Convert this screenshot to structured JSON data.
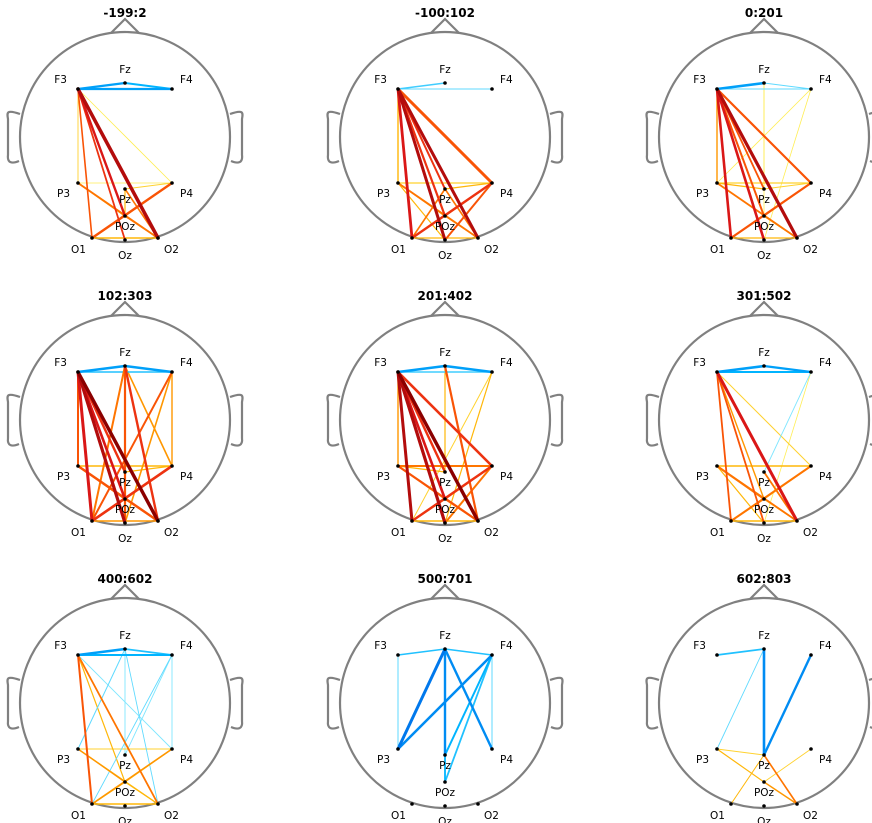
{
  "colors": {
    "head_outline": "#808080",
    "negative_scale": [
      "#7fe6ff",
      "#00b4ff",
      "#0064e6"
    ],
    "positive_scale": [
      "#ffee55",
      "#ffb000",
      "#ff6400",
      "#e41a1a",
      "#8b0000"
    ],
    "electrode": "#000000"
  },
  "electrodes": [
    "F3",
    "Fz",
    "F4",
    "P3",
    "Pz",
    "P4",
    "POz",
    "O1",
    "Oz",
    "O2"
  ],
  "panels": [
    {
      "title": "-199:2",
      "edges": [
        [
          "F3",
          "Fz",
          -0.7,
          2.2
        ],
        [
          "Fz",
          "F4",
          -0.6,
          2.0
        ],
        [
          "F3",
          "F4",
          -0.7,
          2.2
        ],
        [
          "F3",
          "O2",
          0.9,
          3.5
        ],
        [
          "F3",
          "POz",
          0.8,
          2.4
        ],
        [
          "F3",
          "Oz",
          0.7,
          1.8
        ],
        [
          "F3",
          "O1",
          0.6,
          1.6
        ],
        [
          "F3",
          "P3",
          0.2,
          0.9
        ],
        [
          "F3",
          "P4",
          0.1,
          0.8
        ],
        [
          "P3",
          "O2",
          0.5,
          1.8
        ],
        [
          "P3",
          "POz",
          0.4,
          1.6
        ],
        [
          "Pz",
          "O2",
          0.5,
          1.6
        ],
        [
          "Pz",
          "POz",
          0.3,
          1.2
        ],
        [
          "P4",
          "O1",
          0.6,
          2.4
        ],
        [
          "P4",
          "POz",
          0.4,
          1.4
        ],
        [
          "P4",
          "Pz",
          0.2,
          1.0
        ],
        [
          "P4",
          "P3",
          0.1,
          0.8
        ],
        [
          "O1",
          "O2",
          0.3,
          1.4
        ],
        [
          "POz",
          "O2",
          0.5,
          1.6
        ],
        [
          "O1",
          "POz",
          0.4,
          1.2
        ]
      ]
    },
    {
      "title": "-100:102",
      "edges": [
        [
          "F3",
          "Fz",
          -0.4,
          1.6
        ],
        [
          "F3",
          "F4",
          -0.3,
          0.9
        ],
        [
          "F3",
          "O2",
          0.9,
          3.0
        ],
        [
          "F3",
          "Oz",
          0.9,
          3.0
        ],
        [
          "F3",
          "O1",
          0.8,
          2.8
        ],
        [
          "F3",
          "POz",
          0.7,
          2.2
        ],
        [
          "F3",
          "Pz",
          0.7,
          2.0
        ],
        [
          "F3",
          "P4",
          0.6,
          3.0
        ],
        [
          "F3",
          "P3",
          0.3,
          1.4
        ],
        [
          "P3",
          "O2",
          0.5,
          1.8
        ],
        [
          "P3",
          "POz",
          0.4,
          1.6
        ],
        [
          "P3",
          "Oz",
          0.3,
          1.2
        ],
        [
          "Pz",
          "O1",
          0.5,
          1.6
        ],
        [
          "Pz",
          "O2",
          0.5,
          1.6
        ],
        [
          "P4",
          "O1",
          0.7,
          2.4
        ],
        [
          "P4",
          "Oz",
          0.6,
          2.0
        ],
        [
          "P4",
          "POz",
          0.5,
          1.6
        ],
        [
          "P4",
          "P3",
          0.2,
          1.2
        ],
        [
          "P4",
          "Pz",
          0.3,
          1.2
        ],
        [
          "O1",
          "O2",
          0.3,
          1.2
        ],
        [
          "POz",
          "O1",
          0.4,
          1.2
        ],
        [
          "POz",
          "O2",
          0.4,
          1.2
        ]
      ]
    },
    {
      "title": "0:201",
      "edges": [
        [
          "F3",
          "Fz",
          -0.7,
          2.6
        ],
        [
          "Fz",
          "F4",
          -0.3,
          1.0
        ],
        [
          "F3",
          "F4",
          -0.3,
          0.9
        ],
        [
          "F3",
          "O2",
          0.9,
          3.2
        ],
        [
          "F3",
          "Oz",
          0.8,
          2.6
        ],
        [
          "F3",
          "O1",
          0.8,
          2.6
        ],
        [
          "F3",
          "POz",
          0.6,
          2.0
        ],
        [
          "F3",
          "P4",
          0.6,
          2.2
        ],
        [
          "F3",
          "Pz",
          0.6,
          1.8
        ],
        [
          "F3",
          "P3",
          0.4,
          1.4
        ],
        [
          "Fz",
          "Pz",
          0.1,
          0.9
        ],
        [
          "Fz",
          "POz",
          0.1,
          0.8
        ],
        [
          "F4",
          "P3",
          0.1,
          0.8
        ],
        [
          "F4",
          "Oz",
          0.1,
          0.8
        ],
        [
          "P3",
          "O2",
          0.5,
          1.8
        ],
        [
          "P3",
          "Pz",
          0.3,
          1.2
        ],
        [
          "P4",
          "O1",
          0.6,
          2.2
        ],
        [
          "P4",
          "POz",
          0.4,
          1.4
        ],
        [
          "P4",
          "P3",
          0.2,
          1.2
        ],
        [
          "P4",
          "Pz",
          0.2,
          1.0
        ],
        [
          "O1",
          "O2",
          0.3,
          1.2
        ],
        [
          "POz",
          "O2",
          0.4,
          1.4
        ]
      ]
    },
    {
      "title": "102:303",
      "edges": [
        [
          "F3",
          "Fz",
          -0.7,
          2.4
        ],
        [
          "Fz",
          "F4",
          -0.7,
          2.4
        ],
        [
          "F3",
          "F4",
          -0.5,
          1.6
        ],
        [
          "F3",
          "O2",
          1.0,
          3.4
        ],
        [
          "F3",
          "Oz",
          0.9,
          3.2
        ],
        [
          "F3",
          "O1",
          0.8,
          3.0
        ],
        [
          "F3",
          "POz",
          0.8,
          2.6
        ],
        [
          "F3",
          "Pz",
          0.7,
          2.4
        ],
        [
          "F3",
          "P3",
          0.6,
          2.0
        ],
        [
          "Fz",
          "O2",
          0.7,
          2.4
        ],
        [
          "Fz",
          "Oz",
          0.6,
          2.2
        ],
        [
          "Fz",
          "O1",
          0.5,
          2.0
        ],
        [
          "Fz",
          "P4",
          0.4,
          1.6
        ],
        [
          "F4",
          "O1",
          0.6,
          2.0
        ],
        [
          "F4",
          "P4",
          0.4,
          1.4
        ],
        [
          "F4",
          "Oz",
          0.4,
          1.6
        ],
        [
          "P3",
          "O2",
          0.6,
          2.4
        ],
        [
          "P3",
          "P4",
          0.3,
          1.6
        ],
        [
          "P3",
          "POz",
          0.5,
          1.8
        ],
        [
          "P4",
          "O1",
          0.7,
          2.6
        ],
        [
          "P4",
          "Pz",
          0.3,
          1.2
        ],
        [
          "P4",
          "POz",
          0.4,
          1.6
        ],
        [
          "O1",
          "O2",
          0.4,
          1.6
        ],
        [
          "POz",
          "O1",
          0.5,
          1.8
        ],
        [
          "POz",
          "O2",
          0.5,
          1.8
        ]
      ]
    },
    {
      "title": "201:402",
      "edges": [
        [
          "F3",
          "Fz",
          -0.7,
          2.6
        ],
        [
          "Fz",
          "F4",
          -0.7,
          2.6
        ],
        [
          "F3",
          "F4",
          -0.4,
          1.4
        ],
        [
          "F3",
          "O2",
          1.0,
          3.4
        ],
        [
          "F3",
          "Oz",
          0.9,
          3.2
        ],
        [
          "F3",
          "O1",
          0.9,
          3.0
        ],
        [
          "F3",
          "POz",
          0.8,
          2.6
        ],
        [
          "F3",
          "Pz",
          0.7,
          2.4
        ],
        [
          "F3",
          "P4",
          0.7,
          2.6
        ],
        [
          "F3",
          "P3",
          0.4,
          1.4
        ],
        [
          "Fz",
          "O2",
          0.6,
          2.2
        ],
        [
          "Fz",
          "Pz",
          0.3,
          1.2
        ],
        [
          "F4",
          "Oz",
          0.3,
          1.2
        ],
        [
          "F4",
          "O1",
          0.2,
          1.0
        ],
        [
          "P3",
          "O2",
          0.6,
          2.2
        ],
        [
          "P3",
          "P4",
          0.5,
          2.0
        ],
        [
          "P3",
          "POz",
          0.4,
          1.6
        ],
        [
          "P3",
          "Pz",
          0.3,
          1.2
        ],
        [
          "P4",
          "O1",
          0.7,
          2.4
        ],
        [
          "P4",
          "Oz",
          0.5,
          2.0
        ],
        [
          "P4",
          "POz",
          0.5,
          1.8
        ],
        [
          "O1",
          "O2",
          0.3,
          1.4
        ],
        [
          "POz",
          "O1",
          0.5,
          1.8
        ],
        [
          "POz",
          "O2",
          0.5,
          1.8
        ]
      ]
    },
    {
      "title": "301:502",
      "edges": [
        [
          "F3",
          "Fz",
          -0.7,
          2.6
        ],
        [
          "Fz",
          "F4",
          -0.7,
          2.2
        ],
        [
          "F3",
          "F4",
          -0.6,
          2.0
        ],
        [
          "F3",
          "O2",
          0.8,
          3.0
        ],
        [
          "F3",
          "Oz",
          0.6,
          1.8
        ],
        [
          "F3",
          "O1",
          0.6,
          1.8
        ],
        [
          "F3",
          "POz",
          0.4,
          1.4
        ],
        [
          "F3",
          "P4",
          0.2,
          1.0
        ],
        [
          "F4",
          "Pz",
          -0.2,
          0.9
        ],
        [
          "F4",
          "Oz",
          0.1,
          0.8
        ],
        [
          "P3",
          "P4",
          0.3,
          1.4
        ],
        [
          "P3",
          "POz",
          0.5,
          2.0
        ],
        [
          "P3",
          "O2",
          0.5,
          1.8
        ],
        [
          "P3",
          "Oz",
          0.3,
          1.2
        ],
        [
          "P4",
          "O1",
          0.5,
          2.0
        ],
        [
          "P4",
          "POz",
          0.3,
          1.4
        ],
        [
          "Pz",
          "O2",
          0.5,
          1.8
        ],
        [
          "O1",
          "O2",
          0.3,
          1.6
        ],
        [
          "POz",
          "O1",
          0.4,
          1.6
        ],
        [
          "POz",
          "O2",
          0.3,
          1.4
        ]
      ]
    },
    {
      "title": "400:602",
      "edges": [
        [
          "F3",
          "Fz",
          -0.7,
          2.6
        ],
        [
          "Fz",
          "F4",
          -0.5,
          1.8
        ],
        [
          "F3",
          "F4",
          -0.6,
          2.0
        ],
        [
          "F3",
          "O1",
          0.6,
          2.0
        ],
        [
          "F3",
          "O2",
          0.5,
          1.8
        ],
        [
          "F3",
          "POz",
          0.3,
          1.2
        ],
        [
          "Fz",
          "P3",
          -0.3,
          1.0
        ],
        [
          "Fz",
          "Pz",
          -0.2,
          0.9
        ],
        [
          "Fz",
          "O2",
          -0.3,
          0.9
        ],
        [
          "F4",
          "P4",
          -0.2,
          0.9
        ],
        [
          "F4",
          "Pz",
          -0.2,
          0.9
        ],
        [
          "F4",
          "O1",
          -0.3,
          0.9
        ],
        [
          "F3",
          "P4",
          -0.2,
          0.9
        ],
        [
          "P3",
          "P4",
          0.2,
          1.0
        ],
        [
          "P3",
          "POz",
          0.4,
          1.4
        ],
        [
          "P3",
          "O2",
          0.3,
          1.2
        ],
        [
          "P4",
          "O1",
          0.4,
          1.6
        ],
        [
          "P4",
          "POz",
          0.3,
          1.2
        ],
        [
          "O1",
          "O2",
          0.3,
          1.4
        ],
        [
          "POz",
          "O1",
          0.3,
          1.4
        ],
        [
          "POz",
          "O2",
          0.3,
          1.2
        ]
      ]
    },
    {
      "title": "500:701",
      "edges": [
        [
          "F3",
          "Fz",
          -0.5,
          1.6
        ],
        [
          "Fz",
          "F4",
          -0.5,
          1.6
        ],
        [
          "F3",
          "P3",
          -0.3,
          1.0
        ],
        [
          "Fz",
          "P3",
          -0.9,
          3.0
        ],
        [
          "Fz",
          "Pz",
          -0.8,
          2.4
        ],
        [
          "Fz",
          "P4",
          -0.8,
          2.4
        ],
        [
          "Fz",
          "POz",
          -0.6,
          1.8
        ],
        [
          "F4",
          "P3",
          -0.8,
          2.6
        ],
        [
          "F4",
          "Pz",
          -0.6,
          2.0
        ],
        [
          "F4",
          "POz",
          -0.5,
          1.8
        ],
        [
          "F4",
          "P4",
          -0.3,
          1.0
        ]
      ]
    },
    {
      "title": "602:803",
      "edges": [
        [
          "F3",
          "Fz",
          -0.5,
          1.8
        ],
        [
          "Fz",
          "Pz",
          -0.8,
          2.6
        ],
        [
          "F4",
          "Pz",
          -0.8,
          2.4
        ],
        [
          "Fz",
          "P3",
          -0.3,
          0.9
        ],
        [
          "P3",
          "POz",
          0.3,
          1.2
        ],
        [
          "P3",
          "Pz",
          0.2,
          0.9
        ],
        [
          "Pz",
          "O1",
          0.3,
          1.0
        ],
        [
          "Pz",
          "O2",
          0.5,
          1.6
        ],
        [
          "POz",
          "O2",
          0.4,
          1.4
        ],
        [
          "P4",
          "POz",
          0.2,
          0.9
        ]
      ]
    }
  ]
}
